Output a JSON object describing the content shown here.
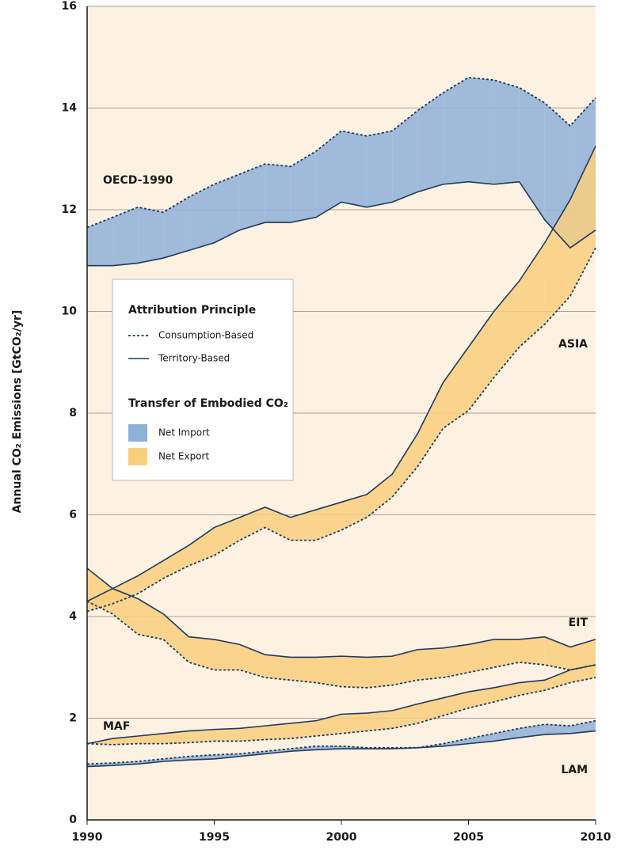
{
  "chart_data": {
    "type": "band",
    "ylabel": "Annual CO₂ Emissions [GtCO₂/yr]",
    "x": [
      1990,
      1991,
      1992,
      1993,
      1994,
      1995,
      1996,
      1997,
      1998,
      1999,
      2000,
      2001,
      2002,
      2003,
      2004,
      2005,
      2006,
      2007,
      2008,
      2009,
      2010
    ],
    "xlim": [
      1990,
      2010
    ],
    "xticks": [
      1990,
      1995,
      2000,
      2005,
      2010
    ],
    "ylim": [
      0,
      16
    ],
    "yticks": [
      0,
      2,
      4,
      6,
      8,
      10,
      12,
      14,
      16
    ],
    "grid": true,
    "line_color": "#1f3a5f",
    "import_color": "#8fb0d8",
    "export_color": "#f9cf7e",
    "background": "#fdf1e1",
    "regions": [
      {
        "name": "OECD-1990",
        "consumption": [
          11.65,
          11.85,
          12.05,
          11.95,
          12.25,
          12.5,
          12.7,
          12.9,
          12.85,
          13.15,
          13.55,
          13.45,
          13.55,
          13.95,
          14.3,
          14.6,
          14.55,
          14.4,
          14.1,
          13.65,
          14.2
        ],
        "territory": [
          10.9,
          10.9,
          10.95,
          11.05,
          11.2,
          11.35,
          11.6,
          11.75,
          11.75,
          11.85,
          12.15,
          12.05,
          12.15,
          12.35,
          12.5,
          12.55,
          12.5,
          12.55,
          11.8,
          11.25,
          11.6
        ]
      },
      {
        "name": "ASIA",
        "consumption": [
          4.1,
          4.25,
          4.45,
          4.75,
          5.0,
          5.2,
          5.5,
          5.75,
          5.5,
          5.5,
          5.7,
          5.95,
          6.35,
          6.95,
          7.7,
          8.05,
          8.7,
          9.3,
          9.75,
          10.3,
          11.25
        ],
        "territory": [
          4.3,
          4.55,
          4.8,
          5.1,
          5.4,
          5.75,
          5.95,
          6.15,
          5.95,
          6.1,
          6.25,
          6.4,
          6.8,
          7.6,
          8.6,
          9.3,
          10.0,
          10.6,
          11.35,
          12.2,
          13.25
        ]
      },
      {
        "name": "EIT",
        "consumption": [
          4.3,
          4.05,
          3.65,
          3.55,
          3.1,
          2.95,
          2.95,
          2.8,
          2.75,
          2.7,
          2.62,
          2.6,
          2.65,
          2.75,
          2.8,
          2.9,
          3.0,
          3.1,
          3.05,
          2.95,
          3.05
        ],
        "territory": [
          4.95,
          4.55,
          4.35,
          4.05,
          3.6,
          3.55,
          3.45,
          3.25,
          3.2,
          3.2,
          3.22,
          3.2,
          3.22,
          3.35,
          3.38,
          3.45,
          3.55,
          3.55,
          3.6,
          3.4,
          3.55
        ]
      },
      {
        "name": "MAF",
        "consumption": [
          1.5,
          1.48,
          1.5,
          1.5,
          1.52,
          1.55,
          1.55,
          1.58,
          1.6,
          1.65,
          1.7,
          1.75,
          1.8,
          1.9,
          2.05,
          2.2,
          2.32,
          2.45,
          2.55,
          2.7,
          2.8
        ],
        "territory": [
          1.5,
          1.6,
          1.65,
          1.7,
          1.75,
          1.78,
          1.8,
          1.85,
          1.9,
          1.95,
          2.08,
          2.1,
          2.15,
          2.28,
          2.4,
          2.52,
          2.6,
          2.7,
          2.75,
          2.95,
          3.05
        ]
      },
      {
        "name": "LAM",
        "consumption": [
          1.1,
          1.12,
          1.15,
          1.2,
          1.25,
          1.28,
          1.3,
          1.35,
          1.4,
          1.45,
          1.45,
          1.42,
          1.42,
          1.42,
          1.5,
          1.6,
          1.7,
          1.8,
          1.88,
          1.85,
          1.95
        ],
        "territory": [
          1.05,
          1.07,
          1.1,
          1.15,
          1.18,
          1.2,
          1.25,
          1.3,
          1.35,
          1.38,
          1.4,
          1.4,
          1.4,
          1.42,
          1.45,
          1.5,
          1.55,
          1.62,
          1.68,
          1.7,
          1.75
        ]
      }
    ],
    "legend": {
      "title1": "Attribution Principle",
      "consumption": "Consumption-Based",
      "territory": "Territory-Based",
      "title2": "Transfer of Embodied CO₂",
      "import": "Net Import",
      "export": "Net Export"
    }
  }
}
